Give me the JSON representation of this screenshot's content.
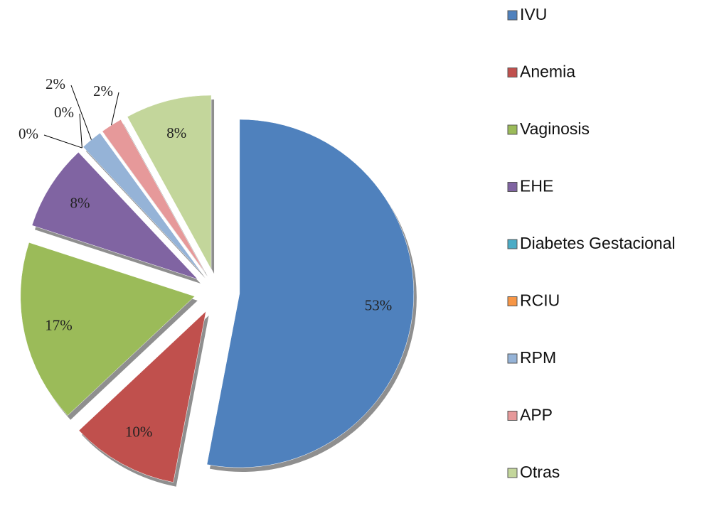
{
  "chart_data": {
    "type": "pie",
    "categories": [
      "IVU",
      "Anemia",
      "Vaginosis",
      "EHE",
      "Diabetes Gestacional",
      "RCIU",
      "RPM",
      "APP",
      "Otras"
    ],
    "values": [
      53,
      10,
      17,
      8,
      0,
      0,
      2,
      2,
      8
    ],
    "value_labels": [
      "53%",
      "10%",
      "17%",
      "8%",
      "0%",
      "0%",
      "2%",
      "2%",
      "8%"
    ],
    "colors": [
      "#4f81bd",
      "#c0504d",
      "#9bbb59",
      "#8064a2",
      "#4bacc6",
      "#f79646",
      "#95b3d7",
      "#e6999a",
      "#c3d69b"
    ],
    "legend": "right"
  }
}
